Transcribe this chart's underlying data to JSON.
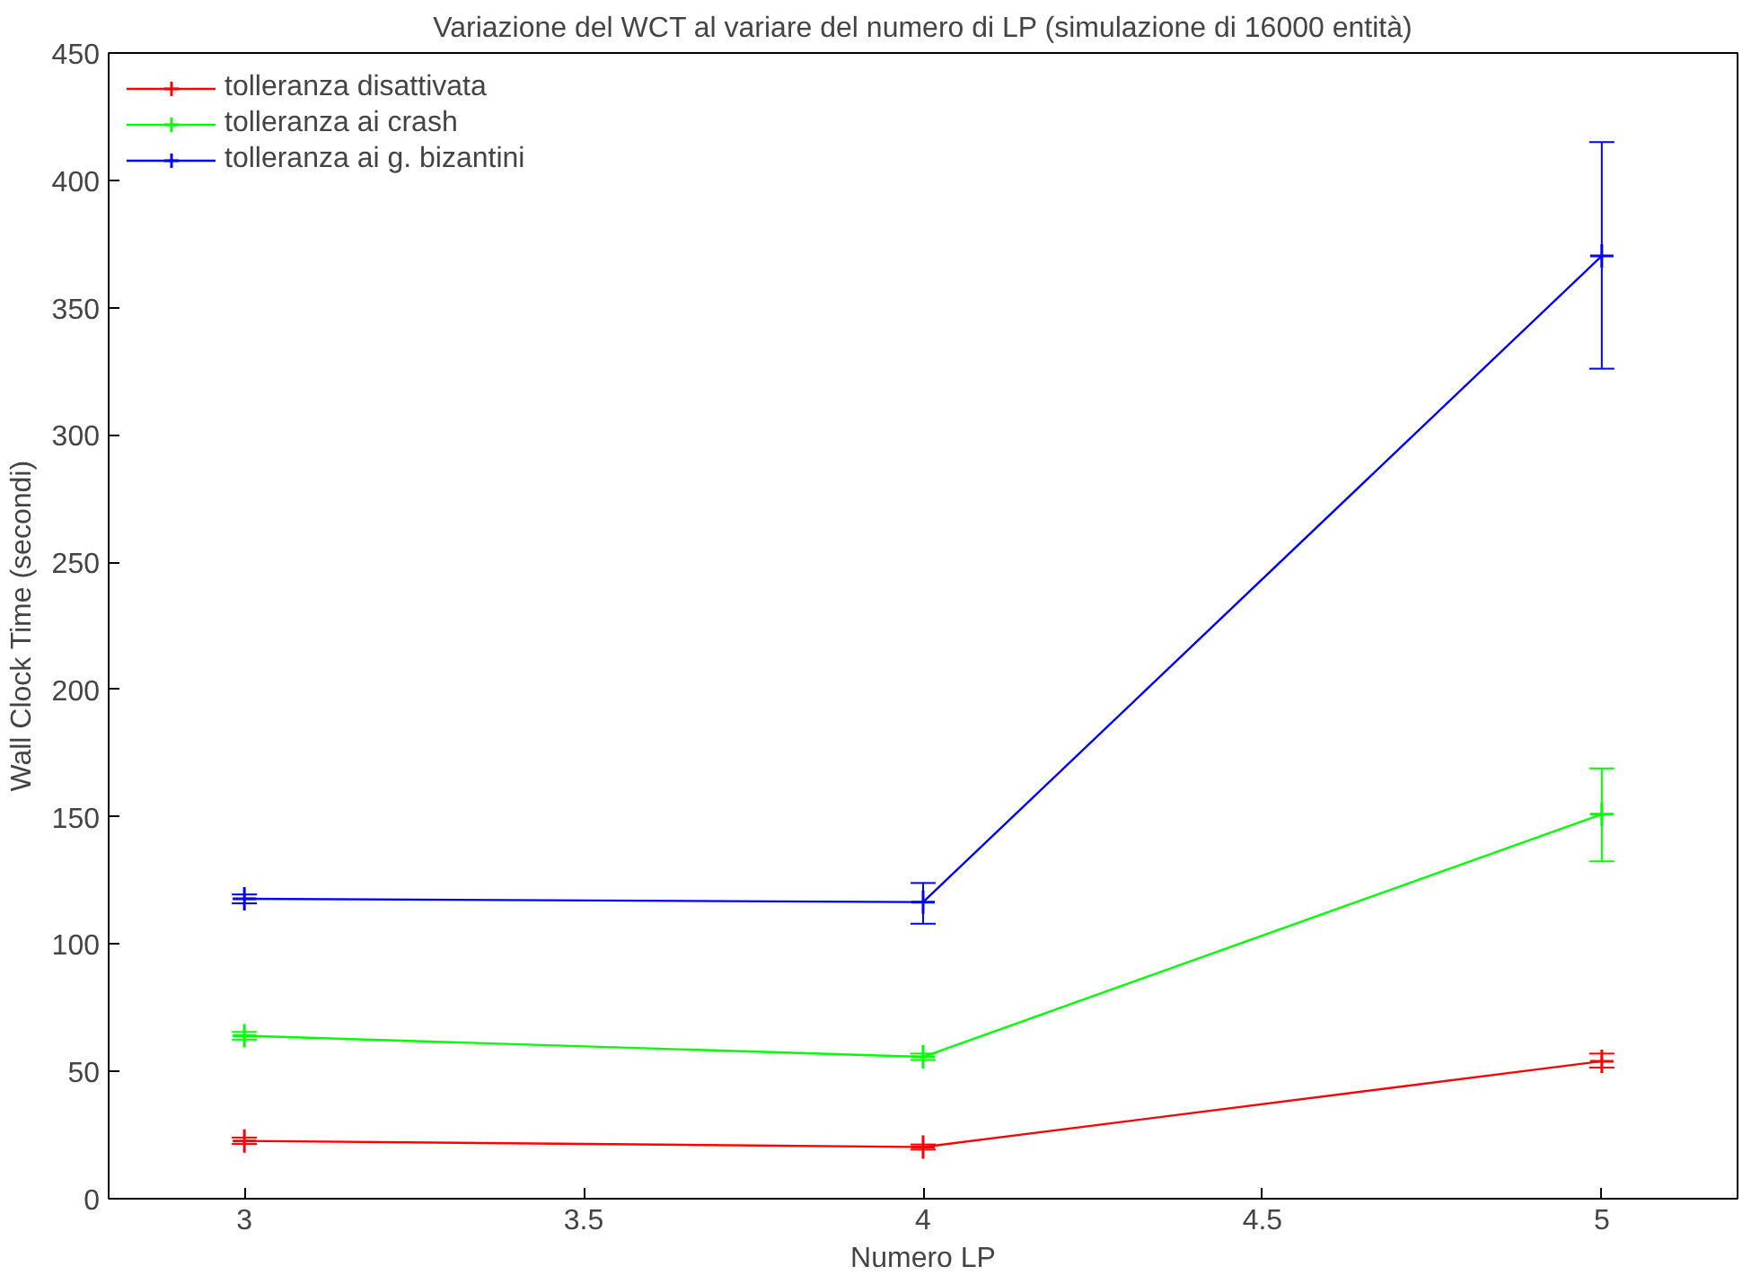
{
  "chart_data": {
    "type": "line",
    "title": "Variazione del WCT al variare del numero di LP (simulazione di 16000 entità)",
    "xlabel": "Numero LP",
    "ylabel": "Wall Clock Time (secondi)",
    "x": [
      3,
      4,
      5
    ],
    "xlim": [
      2.8,
      5.2
    ],
    "xticks": [
      3,
      3.5,
      4,
      4.5,
      5
    ],
    "ylim": [
      0,
      450
    ],
    "yticks": [
      0,
      50,
      100,
      150,
      200,
      250,
      300,
      350,
      400,
      450
    ],
    "grid": false,
    "legend": "top left",
    "marker": "cross",
    "line_style": "solid",
    "series": [
      {
        "name": "tolleranza disattivata",
        "color": "#ff0000",
        "values": [
          22.7,
          20.3,
          54
        ],
        "errors": [
          [
            21.5,
            24
          ],
          [
            19.3,
            21.3
          ],
          [
            51.5,
            57
          ]
        ]
      },
      {
        "name": "tolleranza ai crash",
        "color": "#00ff00",
        "values": [
          64,
          55.7,
          151
        ],
        "errors": [
          [
            62.5,
            65.5
          ],
          [
            54.5,
            57
          ],
          [
            132.5,
            169
          ]
        ]
      },
      {
        "name": "tolleranza ai g. bizantini",
        "color": "#0000ff",
        "values": [
          117.8,
          116.5,
          370.3
        ],
        "errors": [
          [
            116,
            119.5
          ],
          [
            108,
            124
          ],
          [
            326,
            415
          ]
        ]
      }
    ]
  }
}
